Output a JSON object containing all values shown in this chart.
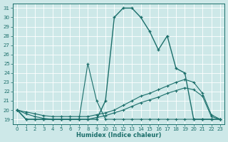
{
  "xlabel": "Humidex (Indice chaleur)",
  "bg_color": "#cde8e8",
  "line_color": "#1a6e6a",
  "xlim": [
    -0.5,
    23.5
  ],
  "ylim": [
    18.5,
    31.5
  ],
  "xticks": [
    0,
    1,
    2,
    3,
    4,
    5,
    6,
    7,
    8,
    9,
    10,
    11,
    12,
    13,
    14,
    15,
    16,
    17,
    18,
    19,
    20,
    21,
    22,
    23
  ],
  "yticks": [
    19,
    20,
    21,
    22,
    23,
    24,
    25,
    26,
    27,
    28,
    29,
    30,
    31
  ],
  "curve1_x": [
    0,
    1,
    2,
    3,
    4,
    5,
    6,
    7,
    8,
    9,
    10,
    11,
    12,
    13,
    14,
    15,
    16,
    17,
    18,
    19,
    20,
    21,
    22,
    23
  ],
  "curve1_y": [
    20,
    19,
    19,
    19,
    19,
    19,
    19,
    19,
    19,
    19,
    21,
    30,
    31,
    31,
    30,
    28.5,
    26.5,
    28,
    24.5,
    24,
    19,
    19,
    19,
    19
  ],
  "curve2_x": [
    0,
    1,
    2,
    3,
    4,
    5,
    6,
    7,
    8,
    9,
    10,
    11,
    12,
    13,
    14,
    15,
    16,
    17,
    18,
    19,
    20,
    21,
    22,
    23
  ],
  "curve2_y": [
    20,
    19.8,
    19.6,
    19.4,
    19.3,
    19.3,
    19.3,
    19.3,
    19.3,
    19.5,
    19.7,
    20.0,
    20.5,
    21.0,
    21.5,
    21.8,
    22.2,
    22.6,
    23.0,
    23.3,
    23.0,
    21.8,
    19.5,
    19.0
  ],
  "curve3_x": [
    0,
    1,
    2,
    3,
    4,
    5,
    6,
    7,
    8,
    9,
    10,
    11,
    12,
    13,
    14,
    15,
    16,
    17,
    18,
    19,
    20,
    21,
    22,
    23
  ],
  "curve3_y": [
    20,
    19.6,
    19.3,
    19.1,
    19.0,
    19.0,
    19.0,
    19.0,
    19.0,
    19.2,
    19.4,
    19.7,
    20.0,
    20.4,
    20.8,
    21.1,
    21.4,
    21.8,
    22.1,
    22.4,
    22.2,
    21.5,
    19.3,
    19.0
  ],
  "curve4_x": [
    0,
    1,
    2,
    3,
    4,
    5,
    6,
    7,
    8,
    9,
    10,
    11,
    12,
    13,
    14,
    15,
    16,
    17,
    18,
    19,
    20,
    21,
    22,
    23
  ],
  "curve4_y": [
    20,
    19,
    19,
    19,
    19,
    19,
    19,
    19,
    25,
    21,
    19,
    19,
    19,
    19,
    19,
    19,
    19,
    19,
    19,
    19,
    19,
    19,
    19,
    19
  ]
}
